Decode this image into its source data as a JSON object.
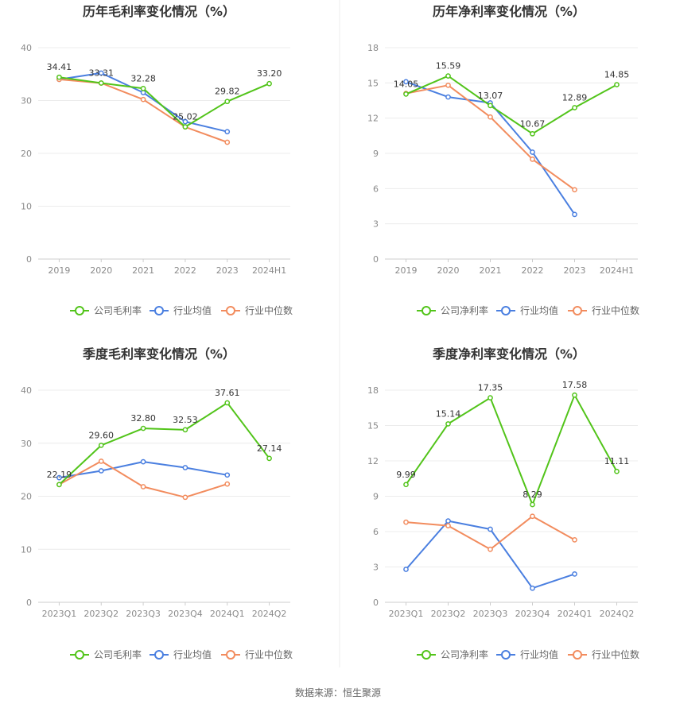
{
  "source": "数据来源：恒生聚源",
  "colors": {
    "company": "#52c41a",
    "industry_avg": "#4a7fe0",
    "industry_median": "#f28c5e"
  },
  "chart_data": [
    {
      "type": "line",
      "title": "历年毛利率变化情况（%）",
      "categories": [
        "2019",
        "2020",
        "2021",
        "2022",
        "2023",
        "2024H1"
      ],
      "ylim": [
        0,
        40
      ],
      "yticks": [
        "0",
        "10",
        "20",
        "30",
        "40"
      ],
      "grid": true,
      "legend": "bottom",
      "series": [
        {
          "name": "公司毛利率",
          "color": "#52c41a",
          "values": [
            34.41,
            33.31,
            32.28,
            25.02,
            29.82,
            33.2
          ],
          "labels": [
            "34.41",
            "33.31",
            "32.28",
            "25.02",
            "29.82",
            "33.20"
          ]
        },
        {
          "name": "行业均值",
          "color": "#4a7fe0",
          "values": [
            34.0,
            35.2,
            31.5,
            26.0,
            24.1,
            null
          ]
        },
        {
          "name": "行业中位数",
          "color": "#f28c5e",
          "values": [
            34.0,
            33.3,
            30.2,
            25.0,
            22.1,
            null
          ]
        }
      ]
    },
    {
      "type": "line",
      "title": "历年净利率变化情况（%）",
      "categories": [
        "2019",
        "2020",
        "2021",
        "2022",
        "2023",
        "2024H1"
      ],
      "ylim": [
        0,
        18
      ],
      "yticks": [
        "0",
        "3",
        "6",
        "9",
        "12",
        "15",
        "18"
      ],
      "grid": true,
      "legend": "bottom",
      "series": [
        {
          "name": "公司净利率",
          "color": "#52c41a",
          "values": [
            14.05,
            15.59,
            13.07,
            10.67,
            12.89,
            14.85
          ],
          "labels": [
            "14.05",
            "15.59",
            "13.07",
            "10.67",
            "12.89",
            "14.85"
          ]
        },
        {
          "name": "行业均值",
          "color": "#4a7fe0",
          "values": [
            15.1,
            13.8,
            13.3,
            9.1,
            3.8,
            null
          ]
        },
        {
          "name": "行业中位数",
          "color": "#f28c5e",
          "values": [
            14.1,
            14.8,
            12.1,
            8.5,
            5.9,
            null
          ]
        }
      ]
    },
    {
      "type": "line",
      "title": "季度毛利率变化情况（%）",
      "categories": [
        "2023Q1",
        "2023Q2",
        "2023Q3",
        "2023Q4",
        "2024Q1",
        "2024Q2"
      ],
      "ylim": [
        0,
        40
      ],
      "yticks": [
        "0",
        "10",
        "20",
        "30",
        "40"
      ],
      "grid": true,
      "legend": "bottom",
      "series": [
        {
          "name": "公司毛利率",
          "color": "#52c41a",
          "values": [
            22.19,
            29.6,
            32.8,
            32.53,
            37.61,
            27.14
          ],
          "labels": [
            "22.19",
            "29.60",
            "32.80",
            "32.53",
            "37.61",
            "27.14"
          ]
        },
        {
          "name": "行业均值",
          "color": "#4a7fe0",
          "values": [
            23.5,
            24.8,
            26.5,
            25.4,
            24.0,
            null
          ]
        },
        {
          "name": "行业中位数",
          "color": "#f28c5e",
          "values": [
            22.2,
            26.6,
            21.8,
            19.8,
            22.3,
            null
          ]
        }
      ]
    },
    {
      "type": "line",
      "title": "季度净利率变化情况（%）",
      "categories": [
        "2023Q1",
        "2023Q2",
        "2023Q3",
        "2023Q4",
        "2024Q1",
        "2024Q2"
      ],
      "ylim": [
        0,
        18
      ],
      "yticks": [
        "0",
        "3",
        "6",
        "9",
        "12",
        "15",
        "18"
      ],
      "grid": true,
      "legend": "bottom",
      "series": [
        {
          "name": "公司净利率",
          "color": "#52c41a",
          "values": [
            9.99,
            15.14,
            17.35,
            8.29,
            17.58,
            11.11
          ],
          "labels": [
            "9.99",
            "15.14",
            "17.35",
            "8.29",
            "17.58",
            "11.11"
          ]
        },
        {
          "name": "行业均值",
          "color": "#4a7fe0",
          "values": [
            2.8,
            6.9,
            6.2,
            1.2,
            2.4,
            null
          ]
        },
        {
          "name": "行业中位数",
          "color": "#f28c5e",
          "values": [
            6.8,
            6.5,
            4.5,
            7.3,
            5.3,
            null
          ]
        }
      ]
    }
  ]
}
